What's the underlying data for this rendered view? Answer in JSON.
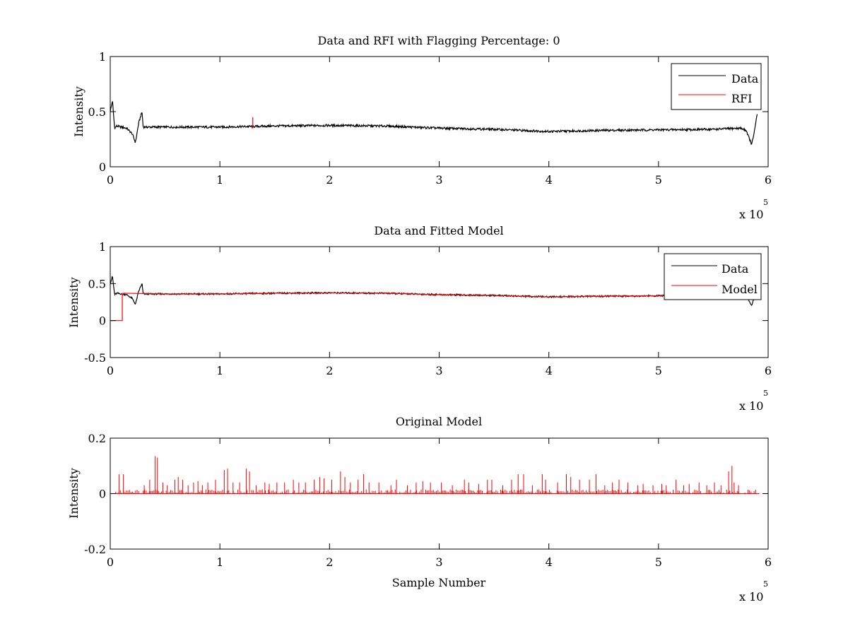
{
  "figure": {
    "background": "#ffffff",
    "axis_color": "#000000",
    "data_color": "#000000",
    "rfi_color": "#ff0000",
    "model_color": "#ff0000"
  },
  "chart_data": [
    {
      "type": "line",
      "title": "Data and RFI with Flagging Percentage: 0",
      "xlabel": "",
      "ylabel": "Intensity",
      "xlim": [
        0,
        6
      ],
      "ylim": [
        0,
        1
      ],
      "x_ticks": [
        "0",
        "1",
        "2",
        "3",
        "4",
        "5",
        "6"
      ],
      "y_ticks": [
        "0",
        "0.5",
        "1"
      ],
      "y_tick_values": [
        0,
        0.5,
        1
      ],
      "x_exponent": {
        "base": "x 10",
        "power": "5"
      },
      "grid": false,
      "legend_position": "top-right",
      "legend": [
        "Data",
        "RFI"
      ],
      "series": [
        {
          "name": "Data",
          "color": "#000000",
          "x": [
            0,
            0.02,
            0.04,
            0.06,
            0.1,
            0.15,
            0.2,
            0.23,
            0.26,
            0.29,
            0.3,
            0.5,
            1.0,
            1.5,
            2.0,
            2.5,
            3.0,
            3.5,
            4.0,
            4.5,
            5.0,
            5.5,
            5.75,
            5.8,
            5.85,
            5.88,
            5.9
          ],
          "y": [
            0.5,
            0.6,
            0.35,
            0.37,
            0.36,
            0.35,
            0.3,
            0.22,
            0.4,
            0.5,
            0.36,
            0.36,
            0.36,
            0.37,
            0.375,
            0.37,
            0.35,
            0.34,
            0.32,
            0.33,
            0.335,
            0.34,
            0.35,
            0.33,
            0.2,
            0.35,
            0.48
          ]
        },
        {
          "name": "RFI",
          "color": "#ff0000",
          "x": [
            1.3,
            1.3
          ],
          "y": [
            0.35,
            0.45
          ]
        }
      ]
    },
    {
      "type": "line",
      "title": "Data and Fitted Model",
      "xlabel": "",
      "ylabel": "Intensity",
      "xlim": [
        0,
        6
      ],
      "ylim": [
        -0.5,
        1
      ],
      "x_ticks": [
        "0",
        "1",
        "2",
        "3",
        "4",
        "5",
        "6"
      ],
      "y_ticks": [
        "-0.5",
        "0",
        "0.5",
        "1"
      ],
      "y_tick_values": [
        -0.5,
        0,
        0.5,
        1
      ],
      "x_exponent": {
        "base": "x 10",
        "power": "5"
      },
      "grid": false,
      "legend_position": "top-right",
      "legend": [
        "Data",
        "Model"
      ],
      "series": [
        {
          "name": "Data",
          "color": "#000000",
          "x": [
            0,
            0.02,
            0.04,
            0.06,
            0.1,
            0.15,
            0.2,
            0.23,
            0.26,
            0.29,
            0.3,
            0.5,
            1.0,
            1.5,
            2.0,
            2.5,
            3.0,
            3.5,
            4.0,
            4.5,
            5.0,
            5.5,
            5.75,
            5.8,
            5.85,
            5.88,
            5.9
          ],
          "y": [
            0.5,
            0.6,
            0.35,
            0.37,
            0.36,
            0.35,
            0.3,
            0.22,
            0.4,
            0.5,
            0.36,
            0.36,
            0.36,
            0.37,
            0.375,
            0.37,
            0.35,
            0.34,
            0.32,
            0.33,
            0.335,
            0.34,
            0.35,
            0.33,
            0.2,
            0.35,
            0.48
          ]
        },
        {
          "name": "Model",
          "color": "#ff0000",
          "x": [
            0,
            0.11,
            0.11,
            0.12,
            0.12,
            0.5,
            1.0,
            1.5,
            2.0,
            2.5,
            3.0,
            3.5,
            4.0,
            4.5,
            5.0,
            5.5,
            5.9
          ],
          "y": [
            0,
            0,
            0.36,
            0.36,
            0.37,
            0.36,
            0.36,
            0.37,
            0.375,
            0.37,
            0.35,
            0.34,
            0.32,
            0.33,
            0.335,
            0.34,
            0.35
          ]
        }
      ]
    },
    {
      "type": "line",
      "title": "Original Model",
      "xlabel": "Sample Number",
      "ylabel": "Intensity",
      "xlim": [
        0,
        6
      ],
      "ylim": [
        -0.2,
        0.2
      ],
      "x_ticks": [
        "0",
        "1",
        "2",
        "3",
        "4",
        "5",
        "6"
      ],
      "y_ticks": [
        "-0.2",
        "0",
        "0.2"
      ],
      "y_tick_values": [
        -0.2,
        0,
        0.2
      ],
      "x_exponent": {
        "base": "x 10",
        "power": "5"
      },
      "grid": false,
      "legend": [],
      "series": [
        {
          "name": "",
          "color": "#ff0000",
          "style": "spikes",
          "baseline": 0,
          "x": [
            0.08,
            0.12,
            0.31,
            0.36,
            0.41,
            0.43,
            0.48,
            0.52,
            0.59,
            0.62,
            0.66,
            0.71,
            0.76,
            0.8,
            0.84,
            0.89,
            0.96,
            1.04,
            1.07,
            1.12,
            1.18,
            1.24,
            1.27,
            1.33,
            1.41,
            1.45,
            1.52,
            1.59,
            1.67,
            1.72,
            1.78,
            1.86,
            1.91,
            1.95,
            2.02,
            2.1,
            2.14,
            2.19,
            2.26,
            2.31,
            2.36,
            2.45,
            2.56,
            2.61,
            2.71,
            2.79,
            2.85,
            2.92,
            3.02,
            3.12,
            3.23,
            3.27,
            3.36,
            3.44,
            3.48,
            3.58,
            3.66,
            3.72,
            3.77,
            3.85,
            3.94,
            3.97,
            4.08,
            4.16,
            4.2,
            4.28,
            4.37,
            4.43,
            4.51,
            4.58,
            4.64,
            4.72,
            4.81,
            4.86,
            4.95,
            5.03,
            5.07,
            5.16,
            5.23,
            5.28,
            5.37,
            5.44,
            5.51,
            5.57,
            5.64,
            5.67,
            5.69,
            5.73
          ],
          "y": [
            0.07,
            0.07,
            0.03,
            0.05,
            0.135,
            0.13,
            0.04,
            0.03,
            0.05,
            0.06,
            0.05,
            0.03,
            0.04,
            0.045,
            0.03,
            0.04,
            0.05,
            0.085,
            0.09,
            0.04,
            0.04,
            0.09,
            0.08,
            0.03,
            0.04,
            0.035,
            0.04,
            0.04,
            0.05,
            0.04,
            0.04,
            0.05,
            0.06,
            0.055,
            0.05,
            0.08,
            0.06,
            0.04,
            0.05,
            0.07,
            0.04,
            0.04,
            0.03,
            0.05,
            0.03,
            0.04,
            0.045,
            0.04,
            0.04,
            0.03,
            0.05,
            0.04,
            0.035,
            0.05,
            0.05,
            0.03,
            0.05,
            0.07,
            0.07,
            0.03,
            0.07,
            0.05,
            0.04,
            0.07,
            0.06,
            0.05,
            0.05,
            0.07,
            0.03,
            0.04,
            0.05,
            0.04,
            0.03,
            0.035,
            0.03,
            0.035,
            0.03,
            0.05,
            0.03,
            0.035,
            0.04,
            0.03,
            0.04,
            0.03,
            0.08,
            0.1,
            0.04,
            0.03
          ]
        }
      ]
    }
  ]
}
